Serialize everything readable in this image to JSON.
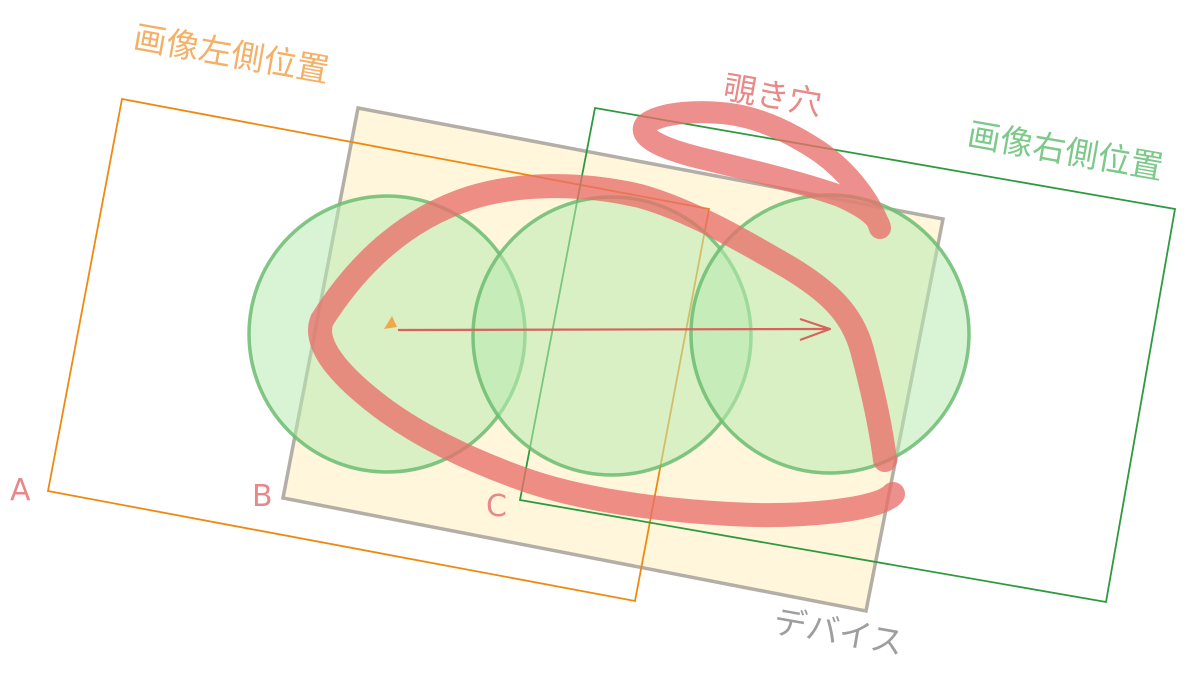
{
  "labels": {
    "left_image_position": "画像左側位置",
    "right_image_position": "画像右側位置",
    "peephole": "覗き穴",
    "device": "デバイス",
    "point_a": "A",
    "point_b": "B",
    "point_c": "C"
  },
  "colors": {
    "left_frame": "#ee8a10",
    "left_label": "#f5b068",
    "right_frame": "#2e9a3e",
    "right_label": "#7cc98a",
    "device_fill": "#fff6dc",
    "device_stroke": "#b3aea6",
    "device_label": "#9e9e9e",
    "circle_fill": "#b8ebb0",
    "circle_stroke": "#6cbc72",
    "highlight_stroke": "#e8706c",
    "peephole_label": "#e88a88",
    "point_label": "#e8888a",
    "arrow": "#d8625e",
    "arrow_tail": "#f0a848"
  }
}
